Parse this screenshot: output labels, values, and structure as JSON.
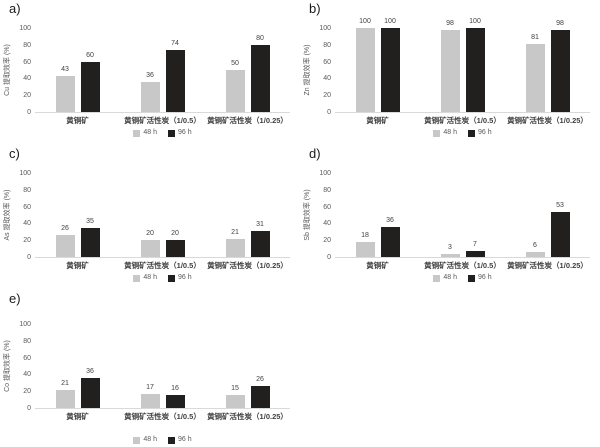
{
  "page": {
    "background": "#ffffff"
  },
  "colors": {
    "series": [
      "#c8c8c8",
      "#221f1f"
    ],
    "axis_line": "#d9d9d9",
    "tick_text": "#595959",
    "value_text": "#404040",
    "category_text": "#404040",
    "legend_text": "#595959"
  },
  "legend": {
    "position": "bottom",
    "labels": [
      "48 h",
      "96 h"
    ]
  },
  "chart_data": [
    {
      "id": "a",
      "panel_label": "a)",
      "type": "bar",
      "title": "",
      "xlabel": "",
      "ylabel": "Cu 提取效率 (%)",
      "ylim": [
        0,
        100
      ],
      "yticks": [
        0,
        20,
        40,
        60,
        80,
        100
      ],
      "grid": false,
      "legend_position": "bottom",
      "categories": [
        "黄铜矿",
        "黄铜矿活性炭（1/0.5）",
        "黄铜矿活性炭（1/0.25）"
      ],
      "series": [
        {
          "name": "48 h",
          "values": [
            43,
            36,
            50
          ]
        },
        {
          "name": "96 h",
          "values": [
            60,
            74,
            80
          ]
        }
      ]
    },
    {
      "id": "b",
      "panel_label": "b)",
      "type": "bar",
      "title": "",
      "xlabel": "",
      "ylabel": "Zn 提取效率 (%)",
      "ylim": [
        0,
        100
      ],
      "yticks": [
        0,
        20,
        40,
        60,
        80,
        100
      ],
      "grid": false,
      "legend_position": "bottom",
      "categories": [
        "黄铜矿",
        "黄铜矿活性炭（1/0.5）",
        "黄铜矿活性炭（1/0.25）"
      ],
      "series": [
        {
          "name": "48 h",
          "values": [
            100,
            98,
            81
          ]
        },
        {
          "name": "96 h",
          "values": [
            100,
            100,
            98
          ]
        }
      ]
    },
    {
      "id": "c",
      "panel_label": "c)",
      "type": "bar",
      "title": "",
      "xlabel": "",
      "ylabel": "As 提取效率 (%)",
      "ylim": [
        0,
        100
      ],
      "yticks": [
        0,
        20,
        40,
        60,
        80,
        100
      ],
      "grid": false,
      "legend_position": "bottom",
      "categories": [
        "黄铜矿",
        "黄铜矿活性炭（1/0.5）",
        "黄铜矿活性炭（1/0.25）"
      ],
      "series": [
        {
          "name": "48 h",
          "values": [
            26,
            20,
            21
          ]
        },
        {
          "name": "96 h",
          "values": [
            35,
            20,
            31
          ]
        }
      ]
    },
    {
      "id": "d",
      "panel_label": "d)",
      "type": "bar",
      "title": "",
      "xlabel": "",
      "ylabel": "Sb 提取效率 (%)",
      "ylim": [
        0,
        100
      ],
      "yticks": [
        0,
        20,
        40,
        60,
        80,
        100
      ],
      "grid": false,
      "legend_position": "bottom",
      "categories": [
        "黄铜矿",
        "黄铜矿活性炭（1/0.5）",
        "黄铜矿活性炭（1/0.25）"
      ],
      "series": [
        {
          "name": "48 h",
          "values": [
            18,
            3,
            6
          ]
        },
        {
          "name": "96 h",
          "values": [
            36,
            7,
            53
          ]
        }
      ]
    },
    {
      "id": "e",
      "panel_label": "e)",
      "type": "bar",
      "title": "",
      "xlabel": "",
      "ylabel": "Co 提取效率 (%)",
      "ylim": [
        0,
        100
      ],
      "yticks": [
        0,
        20,
        40,
        60,
        80,
        100
      ],
      "grid": false,
      "legend_position": "bottom",
      "categories": [
        "黄铜矿",
        "黄铜矿活性炭（1/0.5）",
        "黄铜矿活性炭（1/0.25）"
      ],
      "series": [
        {
          "name": "48 h",
          "values": [
            21,
            17,
            15
          ]
        },
        {
          "name": "96 h",
          "values": [
            36,
            16,
            26
          ]
        }
      ]
    }
  ]
}
